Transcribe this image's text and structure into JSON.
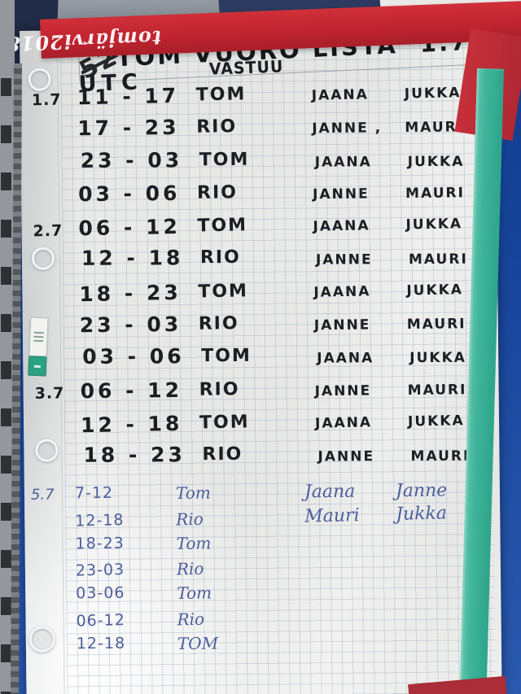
{
  "tape_label_upside_down": "tomjärvi2018",
  "title": {
    "scribble": "52",
    "text": "TOM VUORO LISTA",
    "date": "1.7",
    "arrow": "⟶"
  },
  "headers": {
    "utc": "UTC",
    "vastuu": "VASTUU"
  },
  "schedule": {
    "marker_rows": [
      {
        "date": "1.7",
        "time": "11 - 17",
        "duty": "TOM",
        "n1": "JAANA",
        "n2": "JUKKA"
      },
      {
        "date": "",
        "time": "17 - 23",
        "duty": "RIO",
        "n1": "JANNE ,",
        "n2": "MAURI"
      },
      {
        "date": "",
        "time": "23 - 03",
        "duty": "TOM",
        "n1": "JAANA",
        "n2": "JUKKA"
      },
      {
        "date": "",
        "time": "03 - 06",
        "duty": "RIO",
        "n1": "JANNE",
        "n2": "MAURI"
      },
      {
        "date": "2.7",
        "time": "06 - 12",
        "duty": "TOM",
        "n1": "JAANA",
        "n2": "JUKKA"
      },
      {
        "date": "",
        "time": "12 - 18",
        "duty": "RIO",
        "n1": "JANNE",
        "n2": "MAURI"
      },
      {
        "date": "",
        "time": "18 - 23",
        "duty": "TOM",
        "n1": "JAANA",
        "n2": "JUKKA"
      },
      {
        "date": "",
        "time": "23 - 03",
        "duty": "RIO",
        "n1": "JANNE",
        "n2": "MAURI"
      },
      {
        "date": "",
        "time": "03 - 06",
        "duty": "TOM",
        "n1": "JAANA",
        "n2": "JUKKA"
      },
      {
        "date": "3.7",
        "time": "06 - 12",
        "duty": "RIO",
        "n1": "JANNE",
        "n2": "MAURI"
      },
      {
        "date": "",
        "time": "12 - 18",
        "duty": "TOM",
        "n1": "JAANA",
        "n2": "JUKKA"
      },
      {
        "date": "",
        "time": "18 - 23",
        "duty": "RIO",
        "n1": "JANNE",
        "n2": "MAURI"
      }
    ],
    "pen_rows": [
      {
        "date": "5.7",
        "time": "7-12",
        "duty": "Tom",
        "n1": "Jaana",
        "n2": "Janne"
      },
      {
        "date": "",
        "time": "12-18",
        "duty": "Rio",
        "n1": "Mauri",
        "n2": "Jukka"
      },
      {
        "date": "",
        "time": "18-23",
        "duty": "Tom",
        "n1": "",
        "n2": ""
      },
      {
        "date": "",
        "time": "23-03",
        "duty": "Rio",
        "n1": "",
        "n2": ""
      },
      {
        "date": "",
        "time": "03-06",
        "duty": "Tom",
        "n1": "",
        "n2": ""
      },
      {
        "date": "",
        "time": "06-12",
        "duty": "Rio",
        "n1": "",
        "n2": ""
      },
      {
        "date": "",
        "time": "12-18",
        "duty": "TOM",
        "n1": "",
        "n2": ""
      }
    ]
  },
  "colors": {
    "red_tape": "#c02430",
    "teal_tape": "#3fb49a",
    "background_blue": "#17449a",
    "marker_ink": "#1d1e22",
    "pen_ink": "#4d5e9c"
  }
}
